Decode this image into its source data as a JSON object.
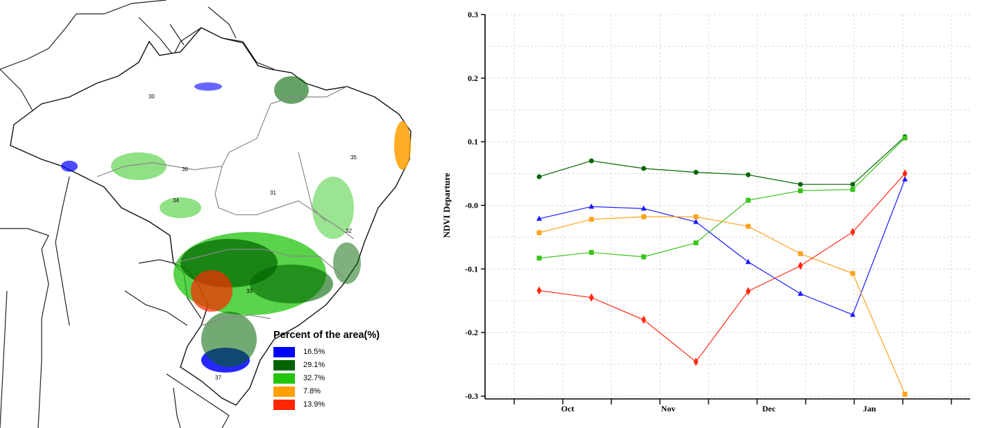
{
  "map": {
    "region_labels": [
      "30",
      "31",
      "32",
      "33",
      "34",
      "35",
      "36",
      "37"
    ],
    "legend": {
      "title": "Percent of the area(%)",
      "items": [
        {
          "label": "16.5%",
          "color": "#0000ff"
        },
        {
          "label": "29.1%",
          "color": "#006400"
        },
        {
          "label": "32.7%",
          "color": "#22c40c"
        },
        {
          "label": "7.8%",
          "color": "#ff9f00"
        },
        {
          "label": "13.9%",
          "color": "#ff2600"
        }
      ]
    }
  },
  "chart_data": {
    "type": "line",
    "title": "",
    "xlabel": "",
    "ylabel": "NDVI Departure",
    "ylim": [
      -0.3,
      0.3
    ],
    "yticks": [
      "0.3",
      "0.2",
      "0.1",
      "-0.0",
      "-0.1",
      "-0.2",
      "-0.3"
    ],
    "month_labels": [
      "Oct",
      "Nov",
      "Dec",
      "Jan"
    ],
    "grid": true,
    "legend": "none",
    "x": [
      1,
      2,
      3,
      4,
      5,
      6,
      7,
      8
    ],
    "series": [
      {
        "color": "#006400",
        "marker": "circle",
        "values": [
          0.045,
          0.07,
          0.058,
          0.052,
          0.048,
          0.033,
          0.033,
          0.108
        ]
      },
      {
        "color": "#3ac41a",
        "marker": "square",
        "values": [
          -0.083,
          -0.074,
          -0.081,
          -0.059,
          0.008,
          0.023,
          0.025,
          0.106
        ]
      },
      {
        "color": "#1a1aff",
        "marker": "triangle",
        "values": [
          -0.021,
          -0.002,
          -0.005,
          -0.026,
          -0.089,
          -0.139,
          -0.172,
          0.041
        ]
      },
      {
        "color": "#ffa31a",
        "marker": "square",
        "values": [
          -0.043,
          -0.022,
          -0.018,
          -0.018,
          -0.033,
          -0.076,
          -0.107,
          -0.297
        ]
      },
      {
        "color": "#ff2a10",
        "marker": "diamond",
        "values": [
          -0.134,
          -0.145,
          -0.18,
          -0.246,
          -0.135,
          -0.095,
          -0.042,
          0.05
        ]
      }
    ]
  }
}
